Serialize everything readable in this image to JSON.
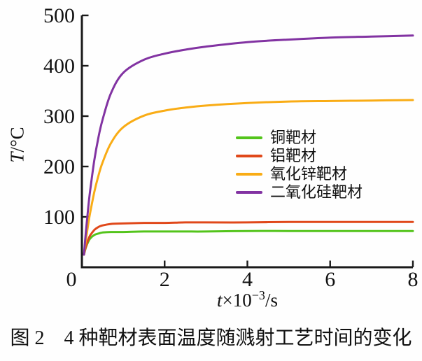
{
  "figure": {
    "caption": "图 2　4 种靶材表面温度随溅射工艺时间的变化"
  },
  "chart_data": {
    "type": "line",
    "title": "",
    "xlabel": "t×10−3/s",
    "ylabel": "T/°C",
    "xlabel_parts": {
      "var": "t",
      "base": "×10",
      "exp": "−3",
      "unit": "/s"
    },
    "ylabel_parts": {
      "var": "T",
      "unit": "/°C"
    },
    "xlim": [
      0,
      8
    ],
    "ylim": [
      0,
      500
    ],
    "x_ticks": [
      0,
      2,
      4,
      6,
      8
    ],
    "y_ticks": [
      0,
      100,
      200,
      300,
      400,
      500
    ],
    "grid": false,
    "legend_position": "center-right",
    "axis_color": "#1a1a1a",
    "x": [
      0.05,
      0.1,
      0.15,
      0.2,
      0.3,
      0.4,
      0.5,
      0.7,
      1,
      1.5,
      2,
      2.5,
      3,
      4,
      5,
      6,
      7,
      8
    ],
    "series": [
      {
        "key": "copper-target",
        "name": "铜靶材",
        "color": "#53c41b",
        "values": [
          25,
          40,
          50,
          57,
          64,
          67,
          69,
          70,
          70,
          71,
          71,
          71,
          71,
          72,
          72,
          72,
          72,
          72
        ]
      },
      {
        "key": "aluminum-target",
        "name": "铝靶材",
        "color": "#e0481a",
        "values": [
          25,
          42,
          54,
          63,
          74,
          80,
          83,
          86,
          87,
          88,
          88,
          89,
          89,
          89,
          90,
          90,
          90,
          90
        ]
      },
      {
        "key": "zinc-oxide-target",
        "name": "氧化锌靶材",
        "color": "#f9ac15",
        "values": [
          25,
          56,
          84,
          108,
          149,
          182,
          208,
          246,
          278,
          301,
          311,
          317,
          321,
          326,
          329,
          330,
          331,
          332
        ]
      },
      {
        "key": "silicon-dioxide-target",
        "name": "二氧化硅靶材",
        "color": "#8233a2",
        "values": [
          25,
          73,
          116,
          152,
          212,
          258,
          293,
          345,
          386,
          412,
          424,
          432,
          438,
          447,
          452,
          456,
          458,
          460
        ]
      }
    ]
  }
}
